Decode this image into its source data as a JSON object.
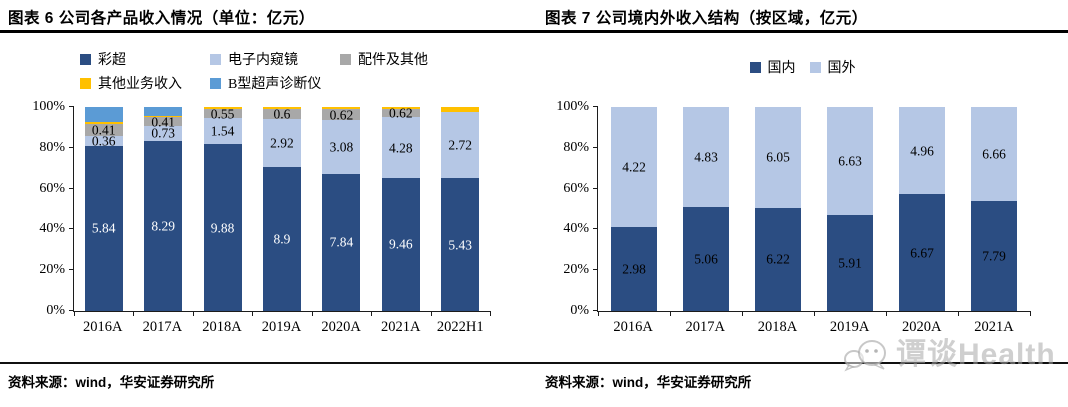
{
  "watermark": {
    "text": "谭谈Health",
    "icon": "chat-bubbles-icon"
  },
  "chart_data": [
    {
      "type": "bar",
      "variant": "stacked-100-percent",
      "title": "图表 6 公司各产品收入情况（单位：亿元）",
      "source": "资料来源：wind，华安证券研究所",
      "grid": false,
      "legend_position": "top",
      "ylim": [
        0,
        100
      ],
      "y_ticks": [
        "0%",
        "20%",
        "40%",
        "60%",
        "80%",
        "100%"
      ],
      "categories": [
        "2016A",
        "2017A",
        "2018A",
        "2019A",
        "2020A",
        "2021A",
        "2022H1"
      ],
      "series": [
        {
          "name": "彩超",
          "color": "#2B4D82",
          "label_color": "#ffffff",
          "values": [
            5.84,
            8.29,
            9.88,
            8.9,
            7.84,
            9.46,
            5.43
          ],
          "labels": [
            "5.84",
            "8.29",
            "9.88",
            "8.9",
            "7.84",
            "9.46",
            "5.43"
          ]
        },
        {
          "name": "电子内窥镜",
          "color": "#B5C7E5",
          "label_color": "#000000",
          "values": [
            0.36,
            0.73,
            1.54,
            2.92,
            3.08,
            4.28,
            2.72
          ],
          "labels": [
            "0.36",
            "0.73",
            "1.54",
            "2.92",
            "3.08",
            "4.28",
            "2.72"
          ]
        },
        {
          "name": "配件及其他",
          "color": "#A8A8A8",
          "label_color": "#000000",
          "values": [
            0.41,
            0.41,
            0.55,
            0.6,
            0.62,
            0.62,
            0
          ],
          "labels": [
            "0.41",
            "0.41",
            "0.55",
            "0.6",
            "0.62",
            "0.62",
            null
          ]
        },
        {
          "name": "其他业务收入",
          "color": "#FFC000",
          "label_color": "#000000",
          "values": [
            0.07,
            0.06,
            0.12,
            0.15,
            0.12,
            0.12,
            0.2
          ],
          "labels": [
            null,
            null,
            null,
            null,
            null,
            null,
            null
          ]
        },
        {
          "name": "B型超声诊断仪",
          "color": "#5B9BD5",
          "label_color": "#000000",
          "values": [
            0.53,
            0.45,
            0,
            0,
            0,
            0,
            0
          ],
          "labels": [
            null,
            null,
            null,
            null,
            null,
            null,
            null
          ]
        }
      ]
    },
    {
      "type": "bar",
      "variant": "stacked-100-percent",
      "title": "图表 7 公司境内外收入结构（按区域，亿元）",
      "source": "资料来源：wind，华安证券研究所",
      "grid": false,
      "legend_position": "top",
      "ylim": [
        0,
        100
      ],
      "y_ticks": [
        "0%",
        "20%",
        "40%",
        "60%",
        "80%",
        "100%"
      ],
      "categories": [
        "2016A",
        "2017A",
        "2018A",
        "2019A",
        "2020A",
        "2021A"
      ],
      "series": [
        {
          "name": "国内",
          "color": "#2B4D82",
          "label_color": "#000000",
          "values": [
            2.98,
            5.06,
            6.22,
            5.91,
            6.67,
            7.79
          ],
          "labels": [
            "2.98",
            "5.06",
            "6.22",
            "5.91",
            "6.67",
            "7.79"
          ]
        },
        {
          "name": "国外",
          "color": "#B5C7E5",
          "label_color": "#000000",
          "values": [
            4.22,
            4.83,
            6.05,
            6.63,
            4.96,
            6.66
          ],
          "labels": [
            "4.22",
            "4.83",
            "6.05",
            "6.63",
            "4.96",
            "6.66"
          ]
        }
      ]
    }
  ]
}
